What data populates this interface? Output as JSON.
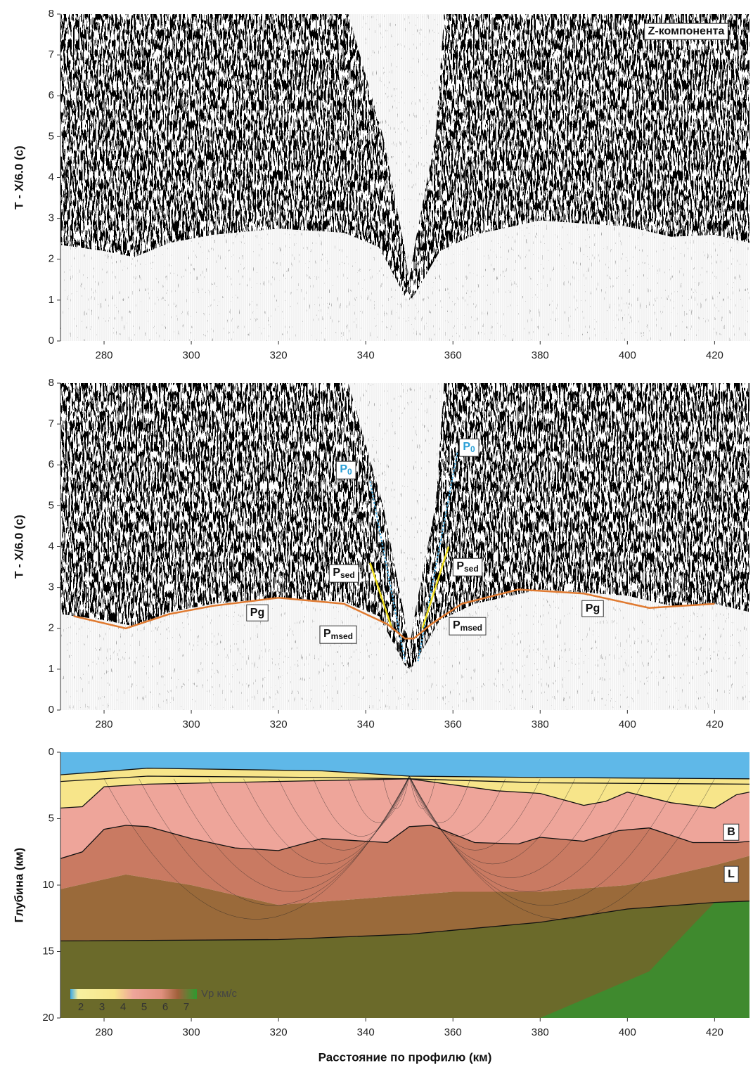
{
  "chart_data": [
    {
      "type": "seismic",
      "ylabel": "T - X/6.0 (с)",
      "xlim": [
        270,
        428
      ],
      "xticks": [
        280,
        300,
        320,
        340,
        360,
        380,
        400,
        420
      ],
      "ylim": [
        0,
        8
      ],
      "yticks": [
        0,
        1,
        2,
        3,
        4,
        5,
        6,
        7,
        8
      ],
      "annotations": [
        {
          "text": "Z-компонента"
        }
      ]
    },
    {
      "type": "seismic",
      "ylabel": "T - X/6.0 (с)",
      "xlim": [
        270,
        428
      ],
      "xticks": [
        280,
        300,
        320,
        340,
        360,
        380,
        400,
        420
      ],
      "ylim": [
        0,
        8
      ],
      "yticks": [
        0,
        1,
        2,
        3,
        4,
        5,
        6,
        7,
        8
      ],
      "annotations": [
        {
          "text": "P",
          "sub": "0"
        },
        {
          "text": "P",
          "sub": "0"
        },
        {
          "text": "P",
          "sub": "sed"
        },
        {
          "text": "P",
          "sub": "sed"
        },
        {
          "text": "Pg"
        },
        {
          "text": "P",
          "sub": "msed"
        },
        {
          "text": "P",
          "sub": "msed"
        },
        {
          "text": "Pg"
        }
      ]
    },
    {
      "type": "section",
      "ylabel": "Глубина (км)",
      "xlabel": "Расстояние по профилю (км)",
      "xlim": [
        270,
        428
      ],
      "xticks": [
        280,
        300,
        320,
        340,
        360,
        380,
        400,
        420
      ],
      "ylim": [
        0,
        20
      ],
      "y_reversed": true,
      "yticks": [
        0,
        5,
        10,
        15,
        20
      ],
      "annotations": [
        {
          "text": "B"
        },
        {
          "text": "L"
        }
      ],
      "colorbar": {
        "label": "Vp  км/с",
        "lim": [
          1.5,
          7.5
        ],
        "ticks": [
          2,
          3,
          4,
          5,
          6,
          7
        ]
      }
    }
  ]
}
